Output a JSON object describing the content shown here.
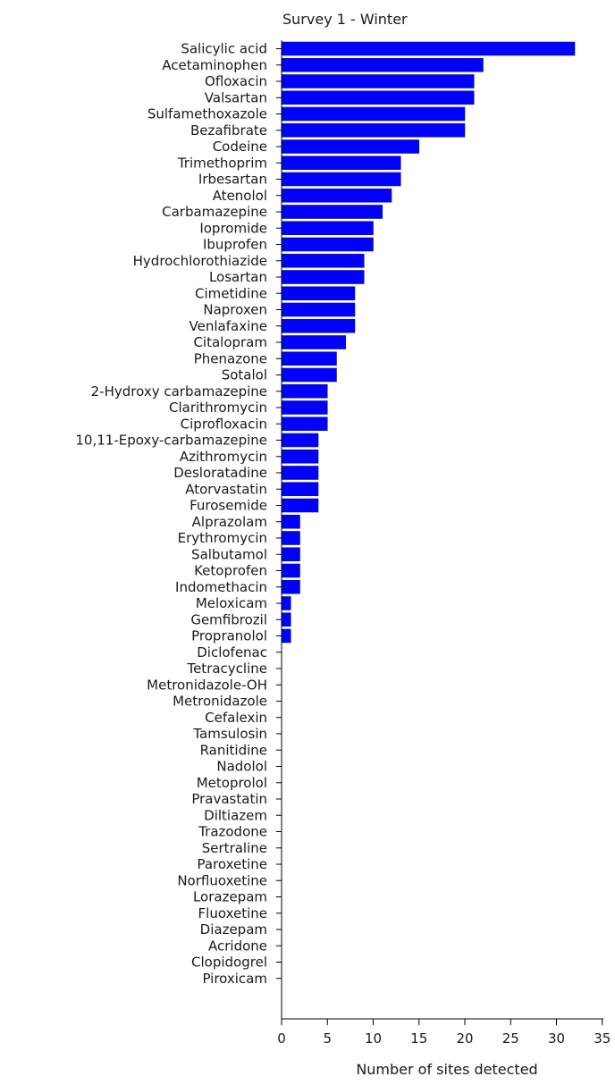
{
  "chart_data": {
    "type": "bar",
    "orientation": "horizontal",
    "title": "Survey 1 - Winter",
    "xlabel": "Number of sites detected",
    "ylabel": "",
    "xlim": [
      0,
      35
    ],
    "xticks": [
      0,
      5,
      10,
      15,
      20,
      25,
      30,
      35
    ],
    "grid": false,
    "legend": "none",
    "bar_color": "#0000ff",
    "categories": [
      "Salicylic acid",
      "Acetaminophen",
      "Ofloxacin",
      "Valsartan",
      "Sulfamethoxazole",
      "Bezafibrate",
      "Codeine",
      "Trimethoprim",
      "Irbesartan",
      "Atenolol",
      "Carbamazepine",
      "Iopromide",
      "Ibuprofen",
      "Hydrochlorothiazide",
      "Losartan",
      "Cimetidine",
      "Naproxen",
      "Venlafaxine",
      "Citalopram",
      "Phenazone",
      "Sotalol",
      "2-Hydroxy carbamazepine",
      "Clarithromycin",
      "Ciprofloxacin",
      "10,11-Epoxy-carbamazepine",
      "Azithromycin",
      "Desloratadine",
      "Atorvastatin",
      "Furosemide",
      "Alprazolam",
      "Erythromycin",
      "Salbutamol",
      "Ketoprofen",
      "Indomethacin",
      "Meloxicam",
      "Gemfibrozil",
      "Propranolol",
      "Diclofenac",
      "Tetracycline",
      "Metronidazole-OH",
      "Metronidazole",
      "Cefalexin",
      "Tamsulosin",
      "Ranitidine",
      "Nadolol",
      "Metoprolol",
      "Pravastatin",
      "Diltiazem",
      "Trazodone",
      "Sertraline",
      "Paroxetine",
      "Norfluoxetine",
      "Lorazepam",
      "Fluoxetine",
      "Diazepam",
      "Acridone",
      "Clopidogrel",
      "Piroxicam"
    ],
    "values": [
      32,
      22,
      21,
      21,
      20,
      20,
      15,
      13,
      13,
      12,
      11,
      10,
      10,
      9,
      9,
      8,
      8,
      8,
      7,
      6,
      6,
      5,
      5,
      5,
      4,
      4,
      4,
      4,
      4,
      2,
      2,
      2,
      2,
      2,
      1,
      1,
      1,
      0,
      0,
      0,
      0,
      0,
      0,
      0,
      0,
      0,
      0,
      0,
      0,
      0,
      0,
      0,
      0,
      0,
      0,
      0,
      0,
      0
    ]
  }
}
